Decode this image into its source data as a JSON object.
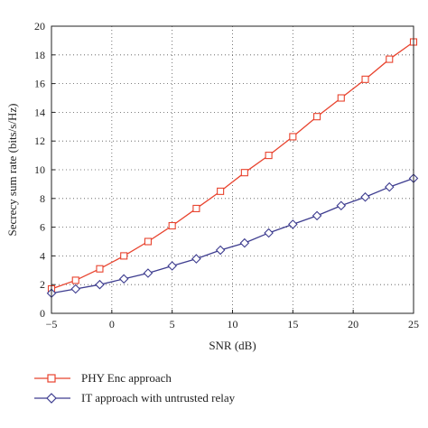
{
  "chart_data": {
    "type": "line",
    "xlabel": "SNR (dB)",
    "ylabel": "Secrecy sum rate (bits/s/Hz)",
    "xlim": [
      -5,
      25
    ],
    "ylim": [
      0,
      20
    ],
    "xticks": [
      -5,
      0,
      5,
      10,
      15,
      20,
      25
    ],
    "yticks": [
      0,
      2,
      4,
      6,
      8,
      10,
      12,
      14,
      16,
      18,
      20
    ],
    "grid": true,
    "legend_position": "below",
    "x": [
      -5,
      -3,
      -1,
      1,
      3,
      5,
      7,
      9,
      11,
      13,
      15,
      17,
      19,
      21,
      23,
      25
    ],
    "series": [
      {
        "name": "PHY Enc approach",
        "color": "#e8432e",
        "marker": "square",
        "values": [
          1.7,
          2.3,
          3.1,
          4.0,
          5.0,
          6.1,
          7.3,
          8.5,
          9.8,
          11.0,
          12.3,
          13.7,
          15.0,
          16.3,
          17.7,
          18.9
        ]
      },
      {
        "name": "IT approach with untrusted relay",
        "color": "#3d3c8f",
        "marker": "diamond",
        "values": [
          1.4,
          1.7,
          2.0,
          2.4,
          2.8,
          3.3,
          3.8,
          4.4,
          4.9,
          5.6,
          6.2,
          6.8,
          7.5,
          8.1,
          8.8,
          9.4
        ]
      }
    ]
  }
}
